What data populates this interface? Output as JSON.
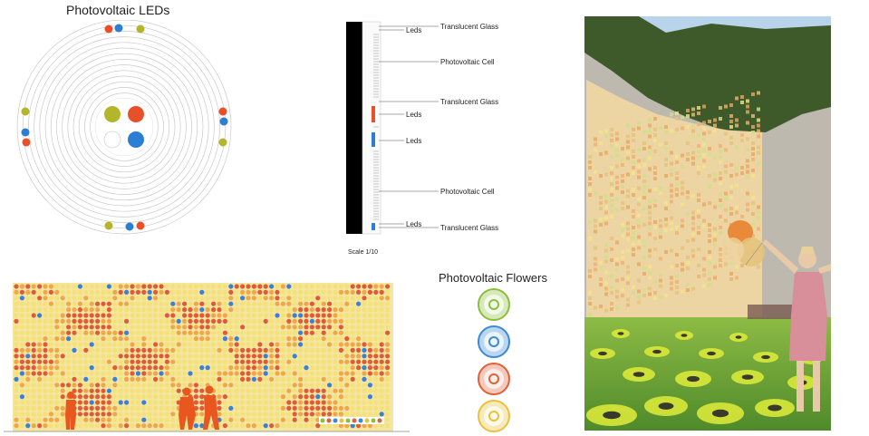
{
  "leds_diagram": {
    "title": "Photovoltaic LEDs",
    "ring_count": 14,
    "colors": {
      "red": "#e8502a",
      "blue": "#2a7fd4",
      "olive": "#b3b52a",
      "ring": "#c9c9c9"
    }
  },
  "section_diagram": {
    "labels": [
      {
        "text": "Translucent Glass"
      },
      {
        "text": "Leds"
      },
      {
        "text": "Photovoltaic Cell"
      },
      {
        "text": "Translucent Glass"
      },
      {
        "text": "Leds"
      },
      {
        "text": "Leds"
      },
      {
        "text": "Photovoltaic Cell"
      },
      {
        "text": "Leds"
      },
      {
        "text": "Translucent Glass"
      }
    ],
    "scale": "Scale 1/10"
  },
  "pattern_elevation": {
    "colors": {
      "yellow": "#f4e17a",
      "orange": "#f0a64a",
      "red": "#e05a3a",
      "blue": "#3b7fd6",
      "figure": "#e8571e"
    }
  },
  "flowers": {
    "title": "Photovoltaic Flowers",
    "items": [
      {
        "color": "#8cbf3a"
      },
      {
        "color": "#3b8ad8"
      },
      {
        "color": "#e0603a"
      },
      {
        "color": "#e8c23a"
      }
    ]
  },
  "photo_collage": {
    "colors": {
      "sky": "#cfe2f0",
      "forest": "#3f5a2a",
      "rock": "#b9b6ae",
      "wall": "#f1d7a2",
      "grass": "#6fa23a",
      "flower": "#d9e83a"
    }
  }
}
